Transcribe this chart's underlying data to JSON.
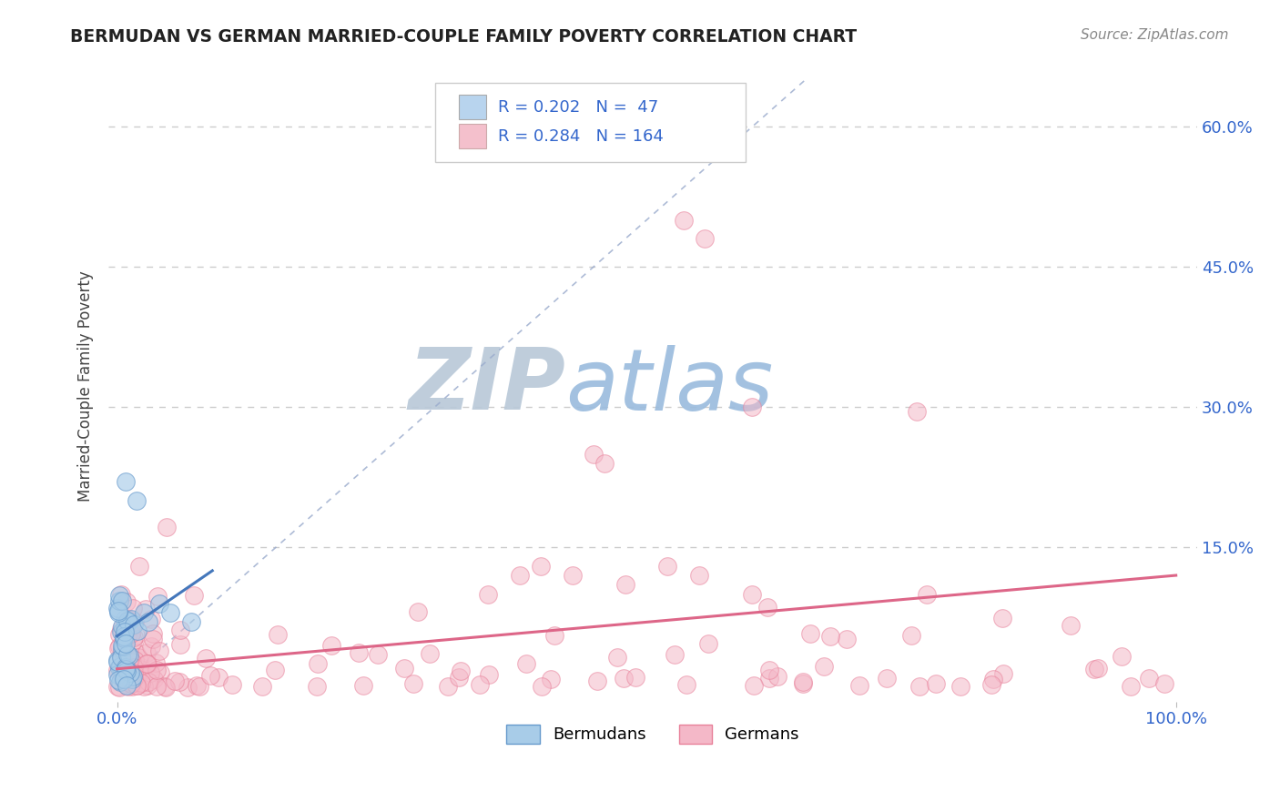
{
  "title": "BERMUDAN VS GERMAN MARRIED-COUPLE FAMILY POVERTY CORRELATION CHART",
  "source": "Source: ZipAtlas.com",
  "ylabel_label": "Married-Couple Family Poverty",
  "color_blue_fill": "#a8cce8",
  "color_blue_edge": "#6699cc",
  "color_pink_fill": "#f4b8c8",
  "color_pink_edge": "#e88099",
  "color_blue_line": "#4477bb",
  "color_pink_line": "#dd6688",
  "color_diagonal": "#99aacc",
  "watermark_zip": "ZIP",
  "watermark_atlas": "atlas",
  "watermark_color_zip": "#b8c8d8",
  "watermark_color_atlas": "#99bbdd",
  "legend_box_blue": "#b8d4ee",
  "legend_box_pink": "#f4c0cc",
  "annotation_color": "#3366cc",
  "background_color": "#ffffff",
  "title_color": "#222222",
  "source_color": "#888888"
}
